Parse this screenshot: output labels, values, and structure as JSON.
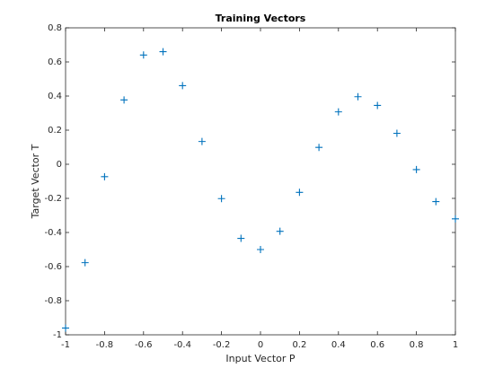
{
  "chart_data": {
    "type": "scatter",
    "title": "Training Vectors",
    "x_label": "Input Vector P",
    "y_label": "Target Vector T",
    "x": [
      -1,
      -0.9,
      -0.8,
      -0.7,
      -0.6,
      -0.5,
      -0.4,
      -0.3,
      -0.2,
      -0.1,
      0,
      0.1,
      0.2,
      0.3,
      0.4,
      0.5,
      0.6,
      0.7,
      0.8,
      0.9,
      1
    ],
    "values": [
      -0.9602,
      -0.577,
      -0.0729,
      0.3771,
      0.6405,
      0.66,
      0.4609,
      0.1336,
      -0.2013,
      -0.4344,
      -0.5,
      -0.393,
      -0.1647,
      0.0988,
      0.3072,
      0.396,
      0.3449,
      0.1816,
      -0.0312,
      -0.2189,
      -0.3201
    ],
    "color": "#0072bd",
    "xlim": [
      -1,
      1
    ],
    "xticks": [
      -1,
      -0.8,
      -0.6,
      -0.4,
      -0.2,
      0,
      0.2,
      0.4,
      0.6,
      0.8,
      1
    ],
    "ylim": [
      -1,
      0.8
    ],
    "yticks": [
      -1,
      -0.8,
      -0.6,
      -0.4,
      -0.2,
      0,
      0.2,
      0.4,
      0.6,
      0.8
    ]
  }
}
